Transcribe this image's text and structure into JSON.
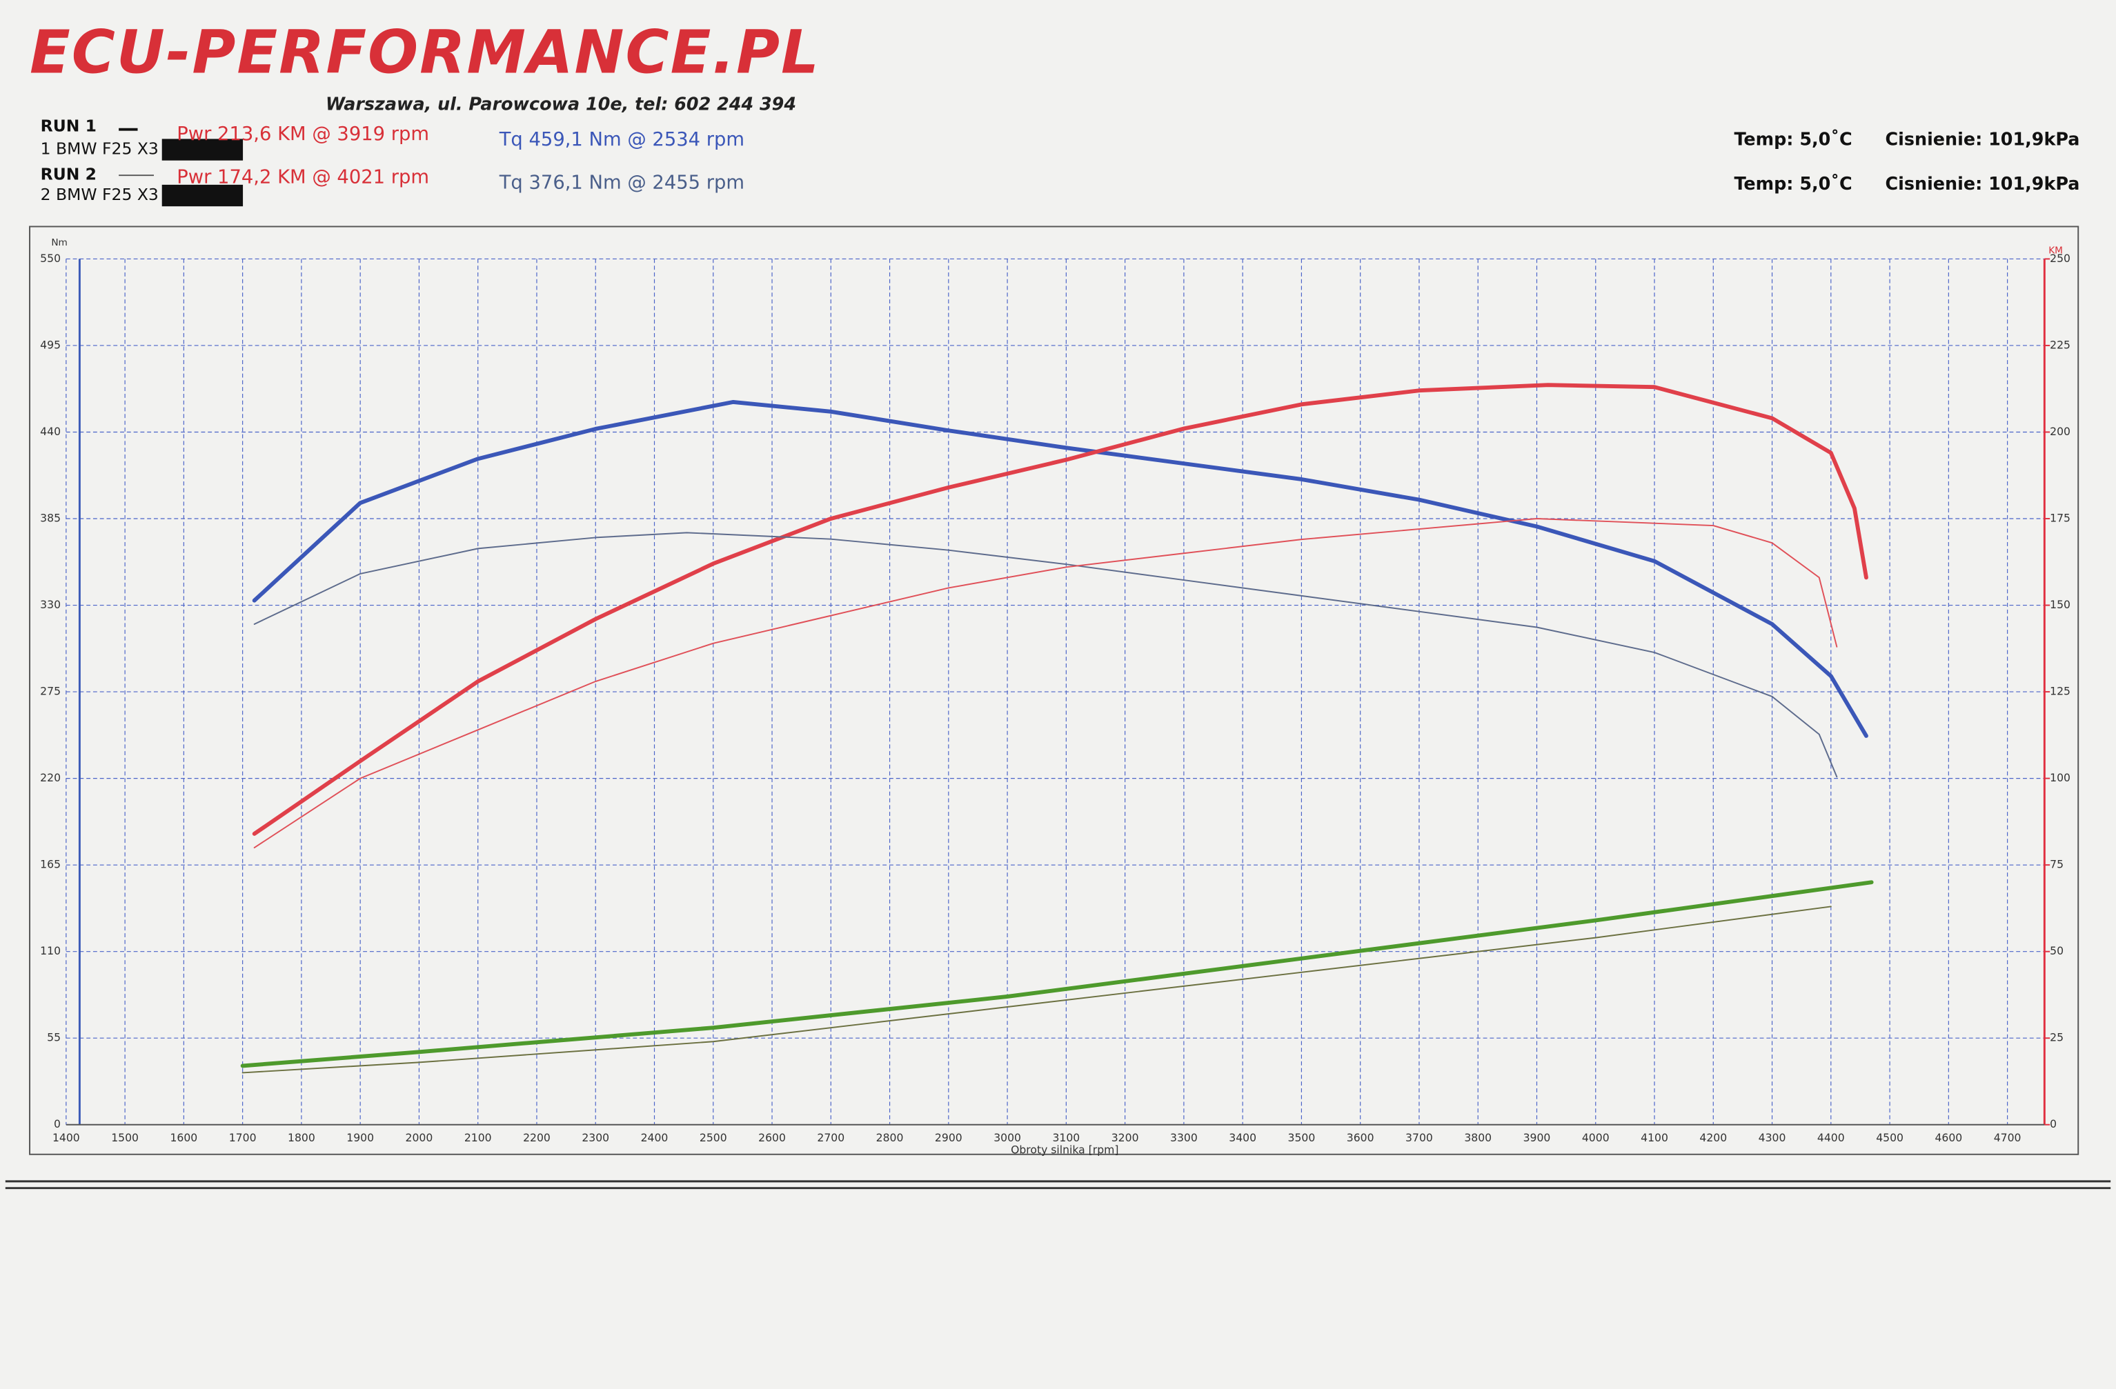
{
  "header": {
    "logo": "ECU-PERFORMANCE.PL",
    "address": "Warszawa, ul. Parowcowa 10e, tel: 602 244 394",
    "runs": [
      {
        "run": "RUN 1",
        "car": "1 BMW F25 X3",
        "power": "Pwr 213,6 KM @ 3919 rpm",
        "torque": "Tq 459,1 Nm @ 2534 rpm",
        "temp": "Temp: 5,0˚C",
        "pressure": "Cisnienie: 101,9kPa"
      },
      {
        "run": "RUN 2",
        "car": "2 BMW F25 X3",
        "power": "Pwr 174,2 KM @ 4021 rpm",
        "torque": "Tq 376,1 Nm @ 2455 rpm",
        "temp": "Temp: 5,0˚C",
        "pressure": "Cisnienie: 101,9kPa"
      }
    ]
  },
  "chart_data": {
    "type": "line",
    "x_label": "Obroty silnika [rpm]",
    "y_label": "Nm",
    "y2_label": "KM",
    "xlim": [
      1400,
      4763
    ],
    "xticks": [
      1400,
      1500,
      1600,
      1700,
      1800,
      1900,
      2000,
      2100,
      2200,
      2300,
      2400,
      2500,
      2600,
      2700,
      2800,
      2900,
      3000,
      3100,
      3200,
      3300,
      3400,
      3500,
      3600,
      3700,
      3800,
      3900,
      4000,
      4100,
      4200,
      4300,
      4400,
      4500,
      4600,
      4700
    ],
    "ylim": [
      0,
      550
    ],
    "yticks": [
      0,
      55,
      110,
      165,
      220,
      275,
      330,
      385,
      440,
      495,
      550
    ],
    "y2lim": [
      0,
      250
    ],
    "y2ticks": [
      0,
      25,
      50,
      75,
      100,
      125,
      150,
      175,
      200,
      225,
      250
    ],
    "grid": true,
    "grid_color": "#4a63c8",
    "y_axis_color": "#3c5bb8",
    "y2_axis_color": "#e03040",
    "series": [
      {
        "color": "#3b57b8",
        "width": 3,
        "x": [
          1720,
          1900,
          2100,
          2300,
          2534,
          2700,
          2900,
          3100,
          3300,
          3500,
          3700,
          3900,
          4100,
          4300,
          4400,
          4460
        ],
        "values": [
          333,
          395,
          423,
          442,
          459.1,
          453,
          441,
          430,
          420,
          410,
          397,
          380,
          358,
          318,
          285,
          247
        ]
      },
      {
        "color": "#e0404a",
        "width": 3,
        "axis": "y2",
        "x": [
          1720,
          1900,
          2100,
          2300,
          2500,
          2700,
          2900,
          3100,
          3300,
          3500,
          3700,
          3919,
          4100,
          4300,
          4400,
          4440,
          4460
        ],
        "values": [
          84,
          105,
          128,
          146,
          162,
          175,
          184,
          192,
          201,
          208,
          212,
          213.6,
          213,
          204,
          194,
          178,
          158
        ]
      },
      {
        "color": "#5d6b8c",
        "width": 1,
        "x": [
          1720,
          1900,
          2100,
          2300,
          2455,
          2700,
          2900,
          3100,
          3300,
          3500,
          3700,
          3900,
          4100,
          4300,
          4380,
          4410
        ],
        "values": [
          318,
          350,
          366,
          373,
          376.1,
          372,
          365,
          356,
          346,
          336,
          326,
          316,
          300,
          272,
          248,
          221
        ]
      },
      {
        "color": "#e05058",
        "width": 1,
        "axis": "y2",
        "x": [
          1720,
          1900,
          2100,
          2300,
          2500,
          2700,
          2900,
          3100,
          3300,
          3500,
          3700,
          3900,
          4021,
          4200,
          4300,
          4380,
          4410
        ],
        "values": [
          80,
          100,
          114,
          128,
          139,
          147,
          155,
          161,
          165,
          169,
          172,
          175,
          174.2,
          173,
          168,
          158,
          138
        ]
      },
      {
        "color": "#4e9a2c",
        "width": 3,
        "axis": "y2",
        "x": [
          1700,
          2000,
          2500,
          3000,
          3500,
          4000,
          4469
        ],
        "values": [
          17,
          21,
          28,
          37,
          48,
          59,
          70
        ]
      },
      {
        "color": "#6b7040",
        "width": 1,
        "axis": "y2",
        "x": [
          1700,
          2000,
          2500,
          3000,
          3500,
          4000,
          4400
        ],
        "values": [
          15,
          18,
          24,
          34,
          44,
          54,
          63
        ]
      }
    ]
  }
}
